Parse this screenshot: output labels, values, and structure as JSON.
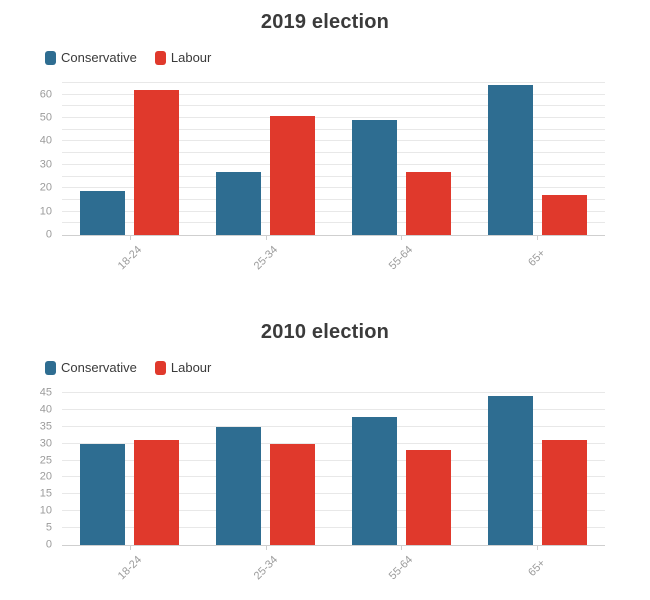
{
  "styles": {
    "title_color": "#3b3b3b",
    "legend_text_color": "#3a3a3a",
    "axis_label_color": "#9b9b9b",
    "gridline_color": "#e8e8e8",
    "axis_line_color": "#cfcfcf",
    "conservative_color": "#2e6d91",
    "labour_color": "#e0392c"
  },
  "chart_data": [
    {
      "type": "bar",
      "title": "2019 election",
      "categories": [
        "18-24",
        "25-34",
        "55-64",
        "65+"
      ],
      "series": [
        {
          "name": "Conservative",
          "color": "#2e6d91",
          "values": [
            19,
            27,
            49,
            64
          ]
        },
        {
          "name": "Labour",
          "color": "#e0392c",
          "values": [
            62,
            51,
            27,
            17
          ]
        }
      ],
      "xlabel": "",
      "ylabel": "",
      "ylim": [
        0,
        65
      ],
      "y_tick_labels": [
        0,
        10,
        20,
        30,
        40,
        50,
        60
      ],
      "y_grid_step": 5,
      "grid": true,
      "legend_position": "top-left"
    },
    {
      "type": "bar",
      "title": "2010 election",
      "categories": [
        "18-24",
        "25-34",
        "55-64",
        "65+"
      ],
      "series": [
        {
          "name": "Conservative",
          "color": "#2e6d91",
          "values": [
            30,
            35,
            38,
            44
          ]
        },
        {
          "name": "Labour",
          "color": "#e0392c",
          "values": [
            31,
            30,
            28,
            31
          ]
        }
      ],
      "xlabel": "",
      "ylabel": "",
      "ylim": [
        0,
        45
      ],
      "y_tick_labels": [
        0,
        5,
        10,
        15,
        20,
        25,
        30,
        35,
        40,
        45
      ],
      "y_grid_step": 5,
      "grid": true,
      "legend_position": "top-left"
    }
  ]
}
